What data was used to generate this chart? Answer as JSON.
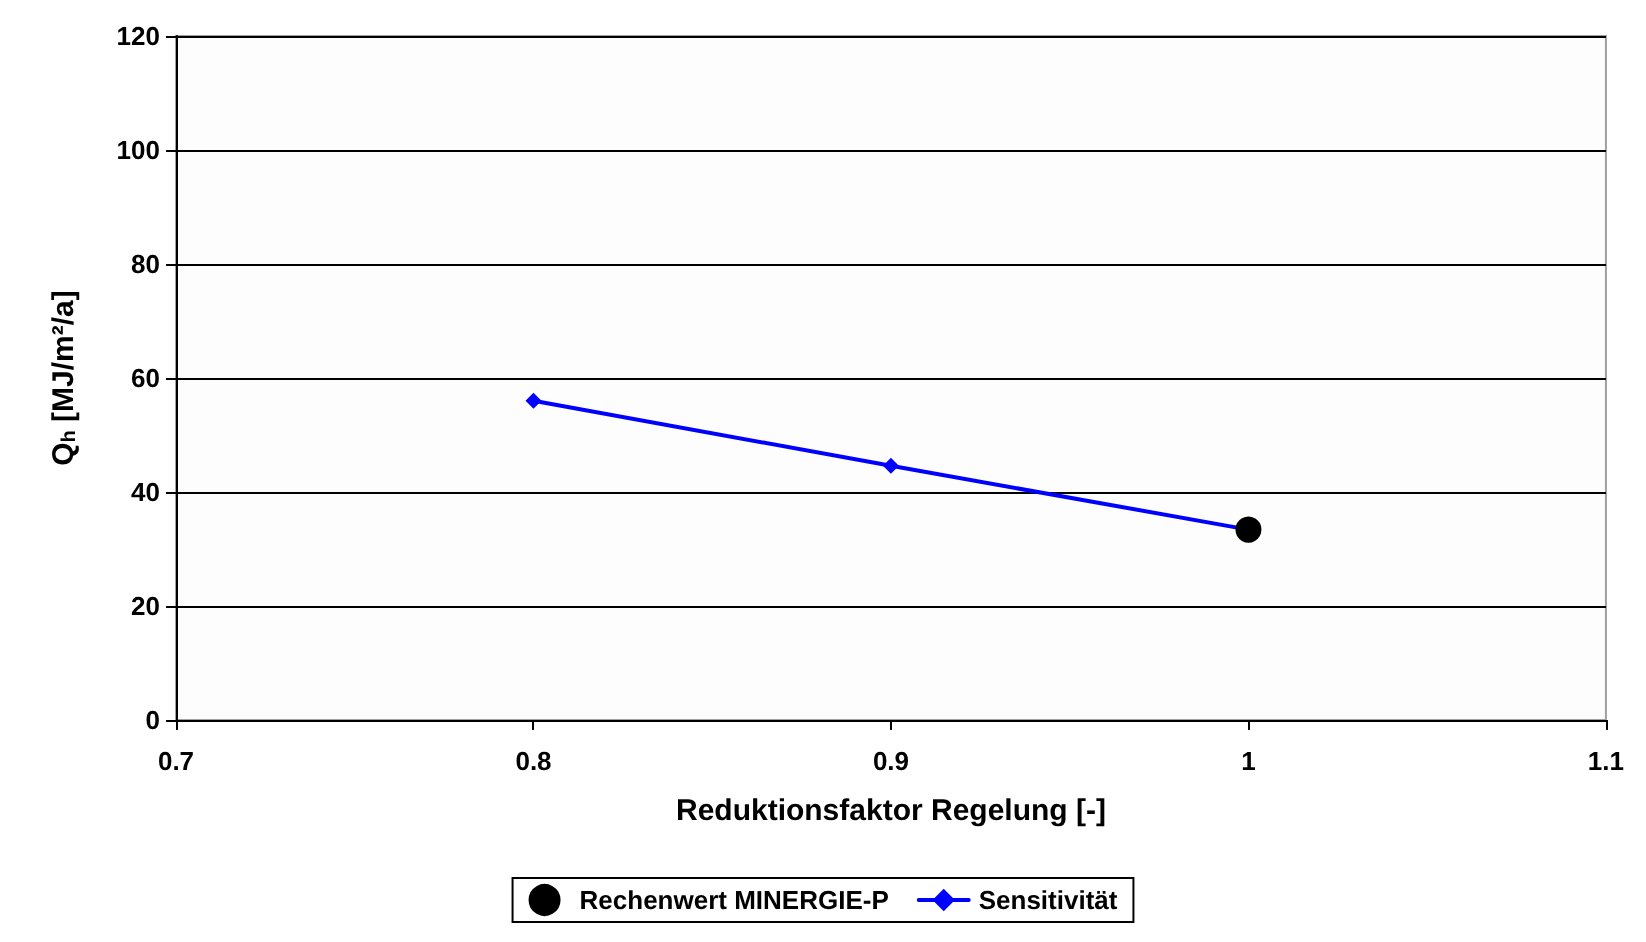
{
  "chart_data": {
    "type": "line",
    "xlabel": "Reduktionsfaktor Regelung [-]",
    "ylabel": "Q$_{h}$ [MJ/m²/a]",
    "xlim": [
      0.7,
      1.1
    ],
    "xticks": [
      0.7,
      0.8,
      0.9,
      1,
      1.1
    ],
    "ylim": [
      0,
      120
    ],
    "yticks": [
      0,
      20,
      40,
      60,
      80,
      100,
      120
    ],
    "grid": "y",
    "legend": "bottom",
    "series": [
      {
        "name": "Rechenwert MINERGIE-P",
        "type": "scatter",
        "color": "#000000",
        "marker": "circle",
        "x": [
          1
        ],
        "values": [
          33.4
        ]
      },
      {
        "name": "Sensitivität",
        "type": "line",
        "color": "#0000ff",
        "marker": "diamond",
        "line_style": "solid",
        "x": [
          0.8,
          0.9,
          1
        ],
        "values": [
          56,
          44.6,
          33.4
        ]
      }
    ]
  }
}
